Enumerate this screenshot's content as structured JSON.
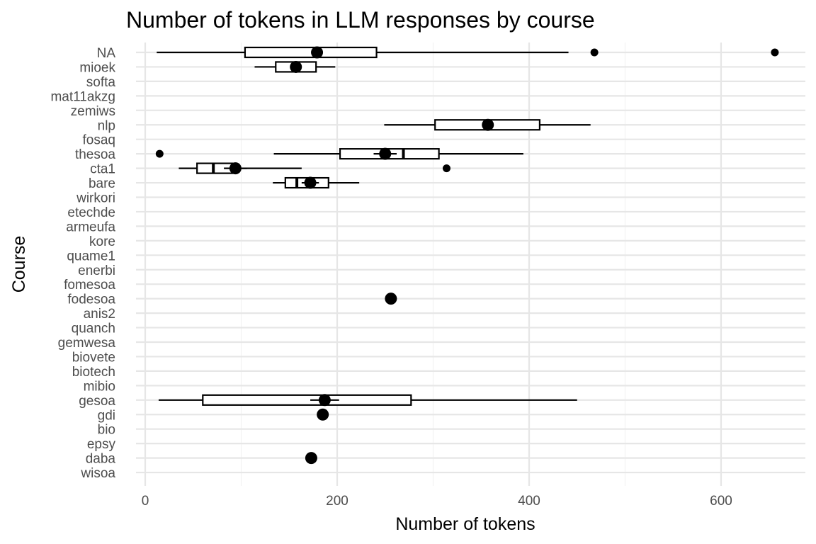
{
  "chart_data": {
    "type": "boxplot",
    "title": "Number of tokens in LLM responses by course",
    "xlabel": "Number of tokens",
    "ylabel": "Course",
    "xlim": [
      -10,
      690
    ],
    "x_ticks": [
      0,
      200,
      400,
      600
    ],
    "x_tick_labels": [
      "0",
      "200",
      "400",
      "600"
    ],
    "grid": true,
    "legend": "none",
    "categories": [
      "NA",
      "mioek",
      "softa",
      "mat11akzg",
      "zemiws",
      "nlp",
      "fosaq",
      "thesoa",
      "cta1",
      "bare",
      "wirkori",
      "etechde",
      "armeufa",
      "kore",
      "quame1",
      "enerbi",
      "fomesoa",
      "fodesoa",
      "anis2",
      "quanch",
      "gemwesa",
      "biovete",
      "biotech",
      "mibio",
      "gesoa",
      "gdi",
      "bio",
      "epsy",
      "daba",
      "wisoa"
    ],
    "boxes": [
      {
        "course": "NA",
        "whisker_low": 12,
        "q1": 104,
        "median": 178,
        "q3": 241,
        "whisker_high": 441,
        "outliers": [
          468,
          656
        ],
        "mean": 179,
        "mean_ci": null
      },
      {
        "course": "mioek",
        "whisker_low": 114,
        "q1": 136,
        "median": 158,
        "q3": 178,
        "whisker_high": 198,
        "outliers": [],
        "mean": 157,
        "mean_ci": null
      },
      {
        "course": "nlp",
        "whisker_low": 249,
        "q1": 302,
        "median": 357,
        "q3": 411,
        "whisker_high": 464,
        "outliers": [],
        "mean": 357,
        "mean_ci": null
      },
      {
        "course": "thesoa",
        "whisker_low": 134,
        "q1": 203,
        "median": 269,
        "q3": 306,
        "whisker_high": 394,
        "outliers": [
          15
        ],
        "mean": 250,
        "mean_ci": [
          238,
          262
        ]
      },
      {
        "course": "cta1",
        "whisker_low": 35,
        "q1": 54,
        "median": 71,
        "q3": 91,
        "whisker_high": 163,
        "outliers": [
          314
        ],
        "mean": 94,
        "mean_ci": [
          82,
          106
        ]
      },
      {
        "course": "bare",
        "whisker_low": 133,
        "q1": 146,
        "median": 158,
        "q3": 191,
        "whisker_high": 223,
        "outliers": [],
        "mean": 172,
        "mean_ci": [
          163,
          181
        ]
      },
      {
        "course": "gesoa",
        "whisker_low": 14,
        "q1": 60,
        "median": 186,
        "q3": 277,
        "whisker_high": 450,
        "outliers": [],
        "mean": 187,
        "mean_ci": [
          172,
          202
        ]
      }
    ],
    "single_means": [
      {
        "course": "fodesoa",
        "mean": 256
      },
      {
        "course": "gdi",
        "mean": 185
      },
      {
        "course": "daba",
        "mean": 173
      }
    ]
  }
}
